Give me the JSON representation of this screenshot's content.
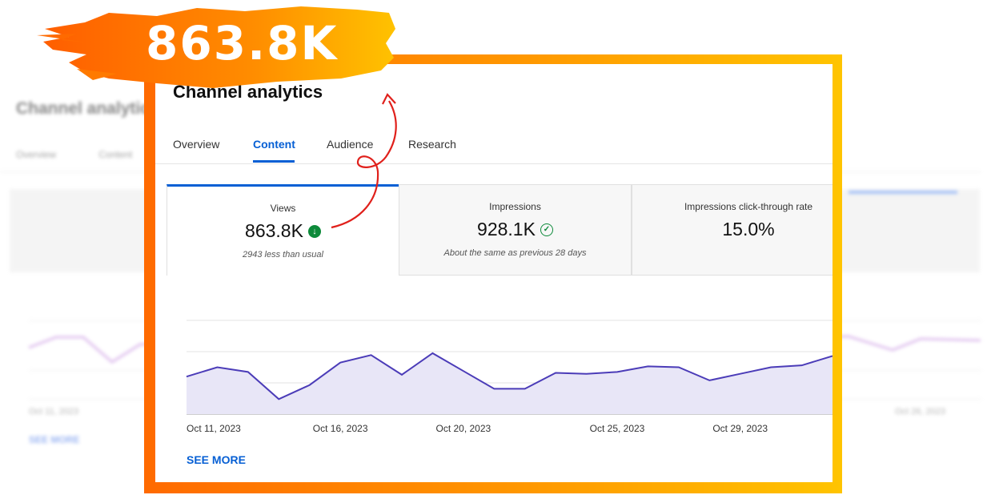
{
  "headline": "863.8K",
  "background": {
    "title": "Channel analytics",
    "tabs": [
      "Overview",
      "Content"
    ],
    "date_start": "Oct 11, 2023",
    "date_end": "Oct 26, 2023",
    "see_more": "SEE MORE"
  },
  "card": {
    "title": "Channel analytics",
    "tabs": [
      {
        "label": "Overview",
        "active": false
      },
      {
        "label": "Content",
        "active": true
      },
      {
        "label": "Audience",
        "active": false
      },
      {
        "label": "Research",
        "active": false
      }
    ],
    "metrics": [
      {
        "label": "Views",
        "value": "863.8K",
        "icon": "arrow-down-circle-icon",
        "note": "2943 less than usual"
      },
      {
        "label": "Impressions",
        "value": "928.1K",
        "icon": "check-circle-icon",
        "note": "About the same as previous 28 days"
      },
      {
        "label": "Impressions click-through rate",
        "value": "15.0%",
        "icon": "",
        "note": ""
      }
    ],
    "see_more": "SEE MORE"
  },
  "chart_data": {
    "type": "area",
    "x_ticks": [
      "Oct 11, 2023",
      "Oct 16, 2023",
      "Oct 20, 2023",
      "Oct 25, 2023",
      "Oct 29, 2023"
    ],
    "series": [
      {
        "values": [
          0.4,
          0.5,
          0.45,
          0.16,
          0.31,
          0.55,
          0.63,
          0.42,
          0.65,
          0.46,
          0.27,
          0.27,
          0.44,
          0.43,
          0.45,
          0.51,
          0.5,
          0.36,
          0.43,
          0.5,
          0.52,
          0.62
        ]
      }
    ],
    "colors": {
      "line": "#4b3cb8",
      "fill": "#e8e6f7",
      "accent": "#065fd4",
      "frame_start": "#ff6a00",
      "frame_end": "#ffc400"
    }
  }
}
